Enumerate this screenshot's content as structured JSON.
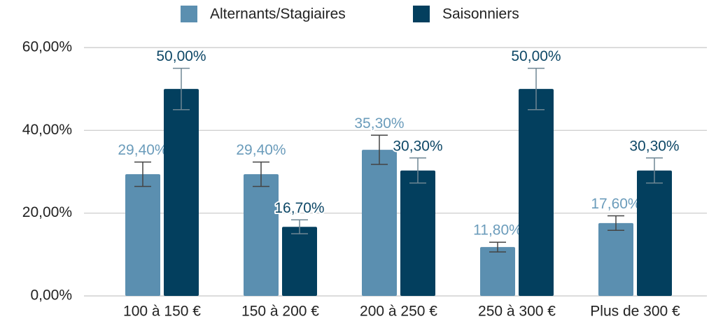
{
  "chart_data": {
    "type": "bar",
    "categories": [
      "100 à 150 €",
      "150 à 200 €",
      "200 à 250 €",
      "250 à 300 €",
      "Plus de 300 €"
    ],
    "series": [
      {
        "name": "Alternants/Stagiaires",
        "color": "#5b8fb0",
        "label_color": "#6b9cbb",
        "values": [
          29.4,
          29.4,
          35.3,
          11.8,
          17.6
        ],
        "errors": [
          2.94,
          2.94,
          3.53,
          1.18,
          1.76
        ],
        "value_labels": [
          "29,40%",
          "29,40%",
          "35,30%",
          "11,80%",
          "17,60%"
        ]
      },
      {
        "name": "Saisonniers",
        "color": "#033f5e",
        "label_color": "#0d4766",
        "values": [
          50,
          16.7,
          30.3,
          50,
          30.3
        ],
        "errors": [
          5,
          1.67,
          3.03,
          5,
          3.03
        ],
        "value_labels": [
          "50,00%",
          "16,70%",
          "30,30%",
          "50,00%",
          "30,30%"
        ]
      }
    ],
    "ylim": [
      0,
      60
    ],
    "yticks": [
      {
        "value": 0,
        "label": "0,00%"
      },
      {
        "value": 20,
        "label": "20,00%"
      },
      {
        "value": 40,
        "label": "40,00%"
      },
      {
        "value": 60,
        "label": "60,00%"
      }
    ],
    "grid": true,
    "legend": "top"
  }
}
